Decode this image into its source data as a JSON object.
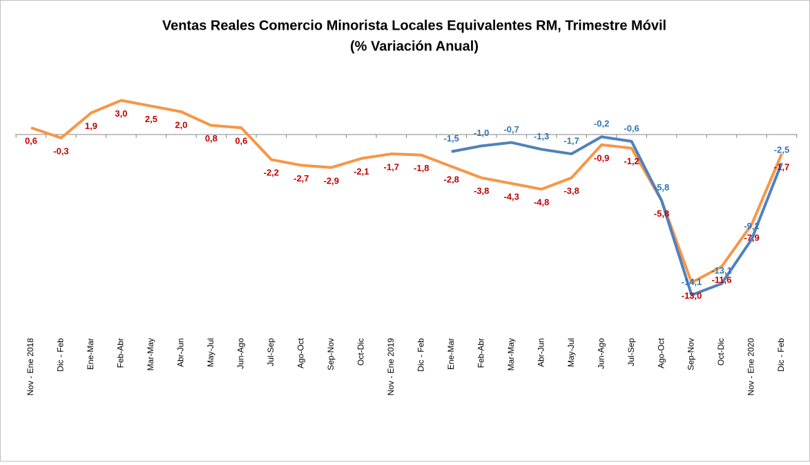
{
  "chart_data": {
    "type": "line",
    "title": "Ventas Reales Comercio Minorista Locales Equivalentes RM, Trimestre Móvil",
    "subtitle": "(% Variación Anual)",
    "categories": [
      "Nov - Ene 2018",
      "Dic - Feb",
      "Ene-Mar",
      "Feb-Abr",
      "Mar-May",
      "Abr-Jun",
      "May-Jul",
      "Jun-Ago",
      "Jul-Sep",
      "Ago-Oct",
      "Sep-Nov",
      "Oct-Dic",
      "Nov - Ene 2019",
      "Dic - Feb",
      "Ene-Mar",
      "Feb-Abr",
      "Mar-May",
      "Abr-Jun",
      "May-Jul",
      "Jun-Ago",
      "Jul-Sep",
      "Ago-Oct",
      "Sep-Nov",
      "Oct-Dic",
      "Nov - Ene 2020",
      "Dic - Feb"
    ],
    "series": [
      {
        "color": "#f79646",
        "label_color": "#c00000",
        "values": [
          0.6,
          -0.3,
          1.9,
          3.0,
          2.5,
          2.0,
          0.8,
          0.6,
          -2.2,
          -2.7,
          -2.9,
          -2.1,
          -1.7,
          -1.8,
          -2.8,
          -3.8,
          -4.3,
          -4.8,
          -3.8,
          -0.9,
          -1.2,
          -5.8,
          -13.0,
          -11.6,
          -7.9,
          -1.7
        ],
        "value_labels": [
          "0,6",
          "-0,3",
          "1,9",
          "3,0",
          "2,5",
          "2,0",
          "0,8",
          "0,6",
          "-2,2",
          "-2,7",
          "-2,9",
          "-2,1",
          "-1,7",
          "-1,8",
          "-2,8",
          "-3,8",
          "-4,3",
          "-4,8",
          "-3,8",
          "-0,9",
          "-1,2",
          "-5,8",
          "-13,0",
          "-11,6",
          "-7,9",
          "-1,7"
        ]
      },
      {
        "color": "#4f81bd",
        "label_color": "#2e75b6",
        "values": [
          null,
          null,
          null,
          null,
          null,
          null,
          null,
          null,
          null,
          null,
          null,
          null,
          null,
          null,
          -1.5,
          -1.0,
          -0.7,
          -1.3,
          -1.7,
          -0.2,
          -0.6,
          -5.8,
          -14.1,
          -13.1,
          -9.2,
          -2.5
        ],
        "value_labels": [
          null,
          null,
          null,
          null,
          null,
          null,
          null,
          null,
          null,
          null,
          null,
          null,
          null,
          null,
          "-1,5",
          "-1,0",
          "-0,7",
          "-1,3",
          "-1,7",
          "-0,2",
          "-0,6",
          "-5,8",
          "-14,1",
          "-13,1",
          "-9,2",
          "-2,5"
        ]
      }
    ],
    "ylim": [
      -16,
      4
    ]
  }
}
